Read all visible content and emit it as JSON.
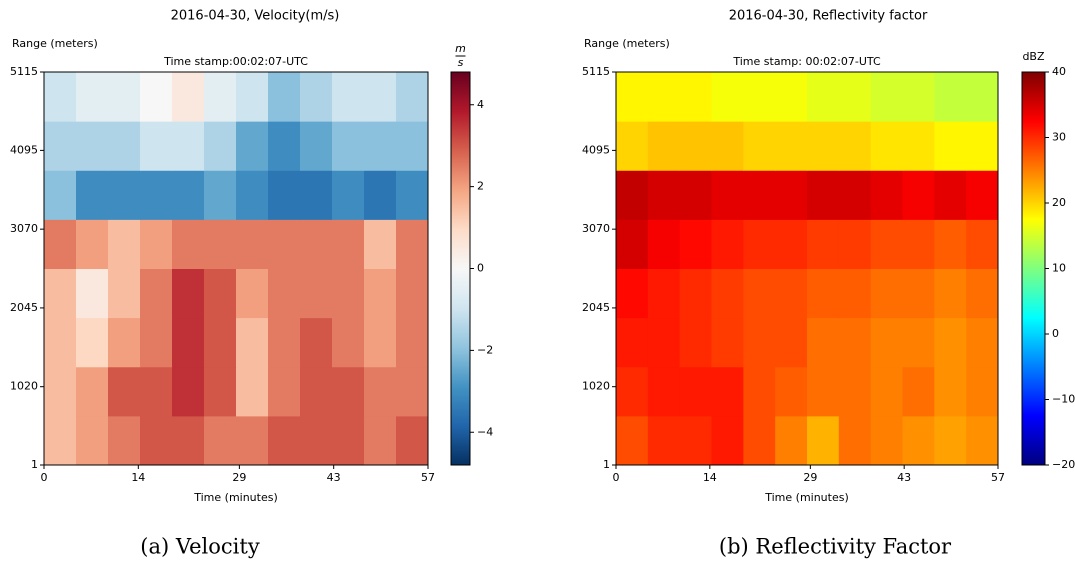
{
  "chart_data": [
    {
      "type": "heatmap",
      "title": "2016-04-30, Velocity(m/s)",
      "subtitle": "Time stamp:00:02:07-UTC",
      "ylabel": "Range (meters)",
      "xlabel": "Time (minutes)",
      "caption": "(a) Velocity",
      "colorbar_label": {
        "numerator": "m",
        "denominator": "s"
      },
      "xlim": [
        0,
        57
      ],
      "xticks": [
        0,
        14,
        29,
        43,
        57
      ],
      "ylim": [
        1,
        5115
      ],
      "yticks": [
        1,
        1020,
        2045,
        3070,
        4095,
        5115
      ],
      "clim": [
        -4.8,
        4.8
      ],
      "cticks": [
        {
          "value": -4,
          "label": "−4"
        },
        {
          "value": -2,
          "label": "−2"
        },
        0,
        2,
        4
      ],
      "colormap": [
        "#053061",
        "#2166ac",
        "#4393c3",
        "#92c5de",
        "#d1e5f0",
        "#f7f7f7",
        "#fddbc7",
        "#f4a582",
        "#d6604d",
        "#b2182b",
        "#67001f"
      ],
      "x_bins": [
        0,
        4.75,
        9.5,
        14.25,
        19,
        23.75,
        28.5,
        33.25,
        38,
        42.75,
        47.5,
        52.25,
        57
      ],
      "y_bins": [
        1,
        640.25,
        1279.5,
        1918.75,
        2558,
        3197.25,
        3836.5,
        4475.75,
        5115
      ],
      "values": [
        [
          1.5,
          2,
          2.5,
          3,
          3,
          2.5,
          2.5,
          3,
          3,
          3,
          2.5,
          3
        ],
        [
          1.5,
          2,
          3,
          3,
          3.5,
          3,
          1.5,
          2.5,
          3,
          3,
          2.5,
          2.5
        ],
        [
          1.5,
          1,
          2,
          2.5,
          3.5,
          3,
          1.5,
          2.5,
          3,
          2.5,
          2,
          2.5
        ],
        [
          1.5,
          0.5,
          1.5,
          2.5,
          3.5,
          3,
          2,
          2.5,
          2.5,
          2.5,
          2,
          2.5
        ],
        [
          2.5,
          2,
          1.5,
          2,
          2.5,
          2.5,
          2.5,
          2.5,
          2.5,
          2.5,
          1.5,
          2.5
        ],
        [
          -2,
          -3,
          -3,
          -3,
          -3,
          -2.5,
          -3,
          -3.5,
          -3.5,
          -3,
          -3.5,
          -3
        ],
        [
          -1.5,
          -1.5,
          -1.5,
          -1,
          -1,
          -1.5,
          -2.5,
          -3,
          -2.5,
          -2,
          -2,
          -2
        ],
        [
          -1,
          -0.5,
          -0.5,
          0,
          0.5,
          -0.5,
          -1,
          -2,
          -1.5,
          -1,
          -1,
          -1.5
        ]
      ]
    },
    {
      "type": "heatmap",
      "title": "2016-04-30, Reflectivity factor",
      "subtitle": "Time stamp: 00:02:07-UTC",
      "ylabel": "Range (meters)",
      "xlabel": "Time (minutes)",
      "caption": "(b) Reflectivity Factor",
      "colorbar_label": "dBZ",
      "xlim": [
        0,
        57
      ],
      "xticks": [
        0,
        14,
        29,
        43,
        57
      ],
      "ylim": [
        1,
        5115
      ],
      "yticks": [
        1,
        1020,
        2045,
        3070,
        4095,
        5115
      ],
      "clim": [
        -20,
        40
      ],
      "cticks": [
        {
          "value": -20,
          "label": "−20"
        },
        {
          "value": -10,
          "label": "−10"
        },
        0,
        10,
        20,
        30,
        40
      ],
      "colormap": [
        "#00007f",
        "#0000ff",
        "#007fff",
        "#00ffff",
        "#7fff7f",
        "#ffff00",
        "#ff7f00",
        "#ff0000",
        "#7f0000"
      ],
      "x_bins": [
        0,
        4.75,
        9.5,
        14.25,
        19,
        23.75,
        28.5,
        33.25,
        38,
        42.75,
        47.5,
        52.25,
        57
      ],
      "y_bins": [
        1,
        640.25,
        1279.5,
        1918.75,
        2558,
        3197.25,
        3836.5,
        4475.75,
        5115
      ],
      "values": [
        [
          28,
          30,
          30,
          31,
          28,
          25,
          22,
          26,
          25,
          24,
          23,
          24
        ],
        [
          30,
          31,
          31,
          31,
          28,
          27,
          26,
          26,
          25,
          26,
          24,
          25
        ],
        [
          31,
          31,
          30,
          29,
          28,
          28,
          26,
          26,
          25,
          25,
          24,
          25
        ],
        [
          32,
          31,
          30,
          29,
          28,
          28,
          27,
          27,
          26,
          26,
          25,
          26
        ],
        [
          35,
          33,
          32,
          31,
          30,
          30,
          29,
          29,
          28,
          28,
          27,
          28
        ],
        [
          36,
          35,
          35,
          34,
          34,
          34,
          35,
          35,
          34,
          33,
          34,
          33
        ],
        [
          20,
          21,
          21,
          21,
          20,
          20,
          20,
          20,
          19,
          19,
          18,
          18
        ],
        [
          18,
          18,
          18,
          17,
          17,
          17,
          16,
          16,
          15,
          15,
          14,
          14
        ]
      ]
    }
  ]
}
